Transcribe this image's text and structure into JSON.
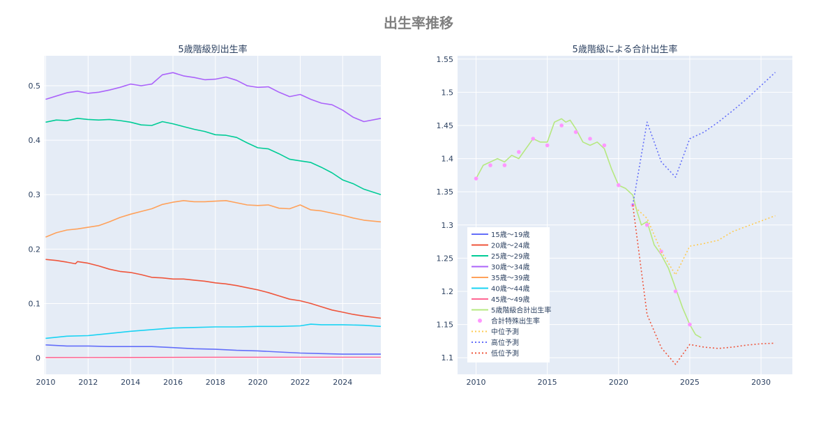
{
  "title": "出生率推移",
  "colors": {
    "plot_bg": "#e5ecf6",
    "grid": "#ffffff",
    "text": "#2a3f5f",
    "title_text": "#7f7f7f"
  },
  "chart_data": [
    {
      "type": "line",
      "title": "5歳階級別出生率",
      "xlabel": "",
      "ylabel": "",
      "xlim": [
        2009.95,
        2025.8
      ],
      "ylim": [
        -0.03,
        0.555
      ],
      "xticks": [
        2010,
        2012,
        2014,
        2016,
        2018,
        2020,
        2022,
        2024
      ],
      "xtick_labels": [
        "2010",
        "2012",
        "2014",
        "2016",
        "2018",
        "2020",
        "2022",
        "2024"
      ],
      "yticks": [
        0,
        0.1,
        0.2,
        0.3,
        0.4,
        0.5
      ],
      "ytick_labels": [
        "0",
        "0.1",
        "0.2",
        "0.3",
        "0.4",
        "0.5"
      ],
      "grid": true,
      "series": [
        {
          "name": "15歳〜19歳",
          "color": "#636efa",
          "dash": "solid",
          "x": [
            2010,
            2011,
            2012,
            2013,
            2014,
            2015,
            2016,
            2017,
            2018,
            2019,
            2020,
            2021,
            2022,
            2023,
            2024,
            2025.8
          ],
          "y": [
            0.024,
            0.022,
            0.022,
            0.021,
            0.021,
            0.021,
            0.019,
            0.017,
            0.016,
            0.014,
            0.013,
            0.011,
            0.009,
            0.008,
            0.007,
            0.007
          ]
        },
        {
          "name": "20歳〜24歳",
          "color": "#ef553b",
          "dash": "solid",
          "x": [
            2010,
            2010.5,
            2011,
            2011.4,
            2011.5,
            2012,
            2012.5,
            2013,
            2013.5,
            2014,
            2014.5,
            2015,
            2015.5,
            2016,
            2016.5,
            2017,
            2017.5,
            2018,
            2018.5,
            2019,
            2019.5,
            2020,
            2020.5,
            2021,
            2021.5,
            2022,
            2022.5,
            2023,
            2023.5,
            2024,
            2024.5,
            2025,
            2025.8
          ],
          "y": [
            0.181,
            0.179,
            0.176,
            0.173,
            0.177,
            0.174,
            0.169,
            0.163,
            0.159,
            0.157,
            0.153,
            0.148,
            0.147,
            0.145,
            0.145,
            0.143,
            0.141,
            0.138,
            0.136,
            0.133,
            0.129,
            0.125,
            0.12,
            0.114,
            0.108,
            0.105,
            0.1,
            0.094,
            0.088,
            0.084,
            0.08,
            0.077,
            0.073
          ]
        },
        {
          "name": "25歳〜29歳",
          "color": "#00cc96",
          "dash": "solid",
          "x": [
            2010,
            2010.5,
            2011,
            2011.5,
            2012,
            2012.5,
            2013,
            2013.5,
            2014,
            2014.5,
            2015,
            2015.5,
            2016,
            2016.5,
            2017,
            2017.5,
            2018,
            2018.5,
            2019,
            2019.5,
            2020,
            2020.5,
            2021,
            2021.5,
            2022,
            2022.5,
            2023,
            2023.5,
            2024,
            2024.5,
            2025,
            2025.8
          ],
          "y": [
            0.433,
            0.437,
            0.436,
            0.44,
            0.438,
            0.437,
            0.438,
            0.436,
            0.433,
            0.428,
            0.427,
            0.434,
            0.43,
            0.425,
            0.42,
            0.416,
            0.41,
            0.409,
            0.405,
            0.395,
            0.386,
            0.384,
            0.375,
            0.365,
            0.362,
            0.359,
            0.35,
            0.34,
            0.327,
            0.32,
            0.31,
            0.3
          ]
        },
        {
          "name": "30歳〜34歳",
          "color": "#ab63fa",
          "dash": "solid",
          "x": [
            2010,
            2010.5,
            2011,
            2011.5,
            2012,
            2012.5,
            2013,
            2013.5,
            2014,
            2014.5,
            2015,
            2015.5,
            2016,
            2016.5,
            2017,
            2017.5,
            2018,
            2018.5,
            2019,
            2019.5,
            2020,
            2020.5,
            2021,
            2021.5,
            2022,
            2022.5,
            2023,
            2023.5,
            2024,
            2024.5,
            2025,
            2025.8
          ],
          "y": [
            0.475,
            0.481,
            0.487,
            0.49,
            0.486,
            0.488,
            0.492,
            0.497,
            0.503,
            0.5,
            0.503,
            0.52,
            0.524,
            0.518,
            0.515,
            0.511,
            0.512,
            0.516,
            0.51,
            0.5,
            0.497,
            0.498,
            0.488,
            0.48,
            0.484,
            0.475,
            0.468,
            0.465,
            0.455,
            0.442,
            0.434,
            0.44
          ]
        },
        {
          "name": "35歳〜39歳",
          "color": "#ffa15a",
          "dash": "solid",
          "x": [
            2010,
            2010.5,
            2011,
            2011.5,
            2012,
            2012.5,
            2013,
            2013.5,
            2014,
            2014.5,
            2015,
            2015.5,
            2016,
            2016.5,
            2017,
            2017.5,
            2018,
            2018.5,
            2019,
            2019.5,
            2020,
            2020.5,
            2021,
            2021.5,
            2022,
            2022.5,
            2023,
            2023.5,
            2024,
            2024.5,
            2025,
            2025.8
          ],
          "y": [
            0.222,
            0.23,
            0.235,
            0.237,
            0.24,
            0.243,
            0.25,
            0.258,
            0.264,
            0.269,
            0.274,
            0.282,
            0.286,
            0.289,
            0.287,
            0.287,
            0.288,
            0.289,
            0.285,
            0.281,
            0.28,
            0.281,
            0.275,
            0.274,
            0.281,
            0.272,
            0.27,
            0.266,
            0.262,
            0.257,
            0.253,
            0.25
          ]
        },
        {
          "name": "40歳〜44歳",
          "color": "#19d3f3",
          "dash": "solid",
          "x": [
            2010,
            2011,
            2012,
            2013,
            2014,
            2015,
            2016,
            2017,
            2018,
            2019,
            2020,
            2021,
            2022,
            2022.5,
            2023,
            2024,
            2025,
            2025.8
          ],
          "y": [
            0.036,
            0.04,
            0.041,
            0.045,
            0.049,
            0.052,
            0.055,
            0.056,
            0.057,
            0.057,
            0.058,
            0.058,
            0.059,
            0.062,
            0.061,
            0.061,
            0.06,
            0.058
          ]
        },
        {
          "name": "45歳〜49歳",
          "color": "#ff6692",
          "dash": "solid",
          "x": [
            2010,
            2014,
            2018,
            2022,
            2025.8
          ],
          "y": [
            0.0006,
            0.0009,
            0.0012,
            0.0013,
            0.0014
          ]
        }
      ]
    },
    {
      "type": "line",
      "title": "5歳階級による合計出生率",
      "xlabel": "",
      "ylabel": "",
      "xlim": [
        2008.7,
        2032.2
      ],
      "ylim": [
        1.075,
        1.555
      ],
      "xticks": [
        2010,
        2015,
        2020,
        2025,
        2030
      ],
      "xtick_labels": [
        "2010",
        "2015",
        "2020",
        "2025",
        "2030"
      ],
      "yticks": [
        1.1,
        1.15,
        1.2,
        1.25,
        1.3,
        1.35,
        1.4,
        1.45,
        1.5,
        1.55
      ],
      "ytick_labels": [
        "1.1",
        "1.15",
        "1.2",
        "1.25",
        "1.3",
        "1.35",
        "1.4",
        "1.45",
        "1.5",
        "1.55"
      ],
      "grid": true,
      "legend_position": "bottom-left",
      "legend": [
        "15歳〜19歳",
        "20歳〜24歳",
        "25歳〜29歳",
        "30歳〜34歳",
        "35歳〜39歳",
        "40歳〜44歳",
        "45歳〜49歳",
        "5歳階級合計出生率",
        "合計特殊出生率",
        "中位予測",
        "高位予測",
        "低位予測"
      ],
      "series": [
        {
          "name": "5歳階級合計出生率",
          "color": "#b6e880",
          "dash": "solid",
          "mode": "line",
          "x": [
            2010,
            2010.5,
            2011,
            2011.5,
            2012,
            2012.5,
            2013,
            2013.5,
            2014,
            2014.5,
            2015,
            2015.5,
            2016,
            2016.3,
            2016.6,
            2017,
            2017.5,
            2018,
            2018.5,
            2019,
            2019.5,
            2020,
            2020.5,
            2021,
            2021.3,
            2021.6,
            2022,
            2022.5,
            2023,
            2023.5,
            2024,
            2024.5,
            2025,
            2025.4,
            2025.8
          ],
          "y": [
            1.37,
            1.39,
            1.395,
            1.4,
            1.395,
            1.405,
            1.4,
            1.415,
            1.43,
            1.425,
            1.425,
            1.455,
            1.46,
            1.455,
            1.458,
            1.445,
            1.425,
            1.42,
            1.425,
            1.415,
            1.385,
            1.36,
            1.355,
            1.345,
            1.32,
            1.3,
            1.305,
            1.27,
            1.255,
            1.235,
            1.205,
            1.175,
            1.15,
            1.135,
            1.13
          ]
        },
        {
          "name": "合計特殊出生率",
          "color": "#ff97ff",
          "mode": "markers",
          "x": [
            2010,
            2011,
            2012,
            2013,
            2014,
            2015,
            2016,
            2017,
            2018,
            2019,
            2020,
            2021,
            2022,
            2023,
            2024,
            2025
          ],
          "y": [
            1.37,
            1.39,
            1.39,
            1.41,
            1.43,
            1.42,
            1.45,
            1.44,
            1.43,
            1.42,
            1.36,
            1.33,
            1.3,
            1.26,
            1.2,
            1.15
          ]
        },
        {
          "name": "中位予測",
          "color": "#fecb52",
          "dash": "dot",
          "mode": "line",
          "x": [
            2021,
            2022,
            2023,
            2024,
            2025,
            2026,
            2027,
            2028,
            2029,
            2030,
            2031
          ],
          "y": [
            1.33,
            1.31,
            1.26,
            1.225,
            1.268,
            1.272,
            1.277,
            1.29,
            1.298,
            1.306,
            1.314
          ]
        },
        {
          "name": "高位予測",
          "color": "#636efa",
          "dash": "dot",
          "mode": "line",
          "x": [
            2021,
            2022,
            2023,
            2024,
            2025,
            2026,
            2027,
            2028,
            2029,
            2030,
            2031
          ],
          "y": [
            1.33,
            1.455,
            1.395,
            1.372,
            1.43,
            1.44,
            1.455,
            1.472,
            1.49,
            1.51,
            1.53
          ]
        },
        {
          "name": "低位予測",
          "color": "#ef553b",
          "dash": "dot",
          "mode": "line",
          "x": [
            2021,
            2022,
            2023,
            2024,
            2025,
            2026,
            2027,
            2028,
            2029,
            2030,
            2031
          ],
          "y": [
            1.33,
            1.165,
            1.115,
            1.09,
            1.12,
            1.116,
            1.114,
            1.116,
            1.119,
            1.121,
            1.122
          ]
        }
      ]
    }
  ]
}
